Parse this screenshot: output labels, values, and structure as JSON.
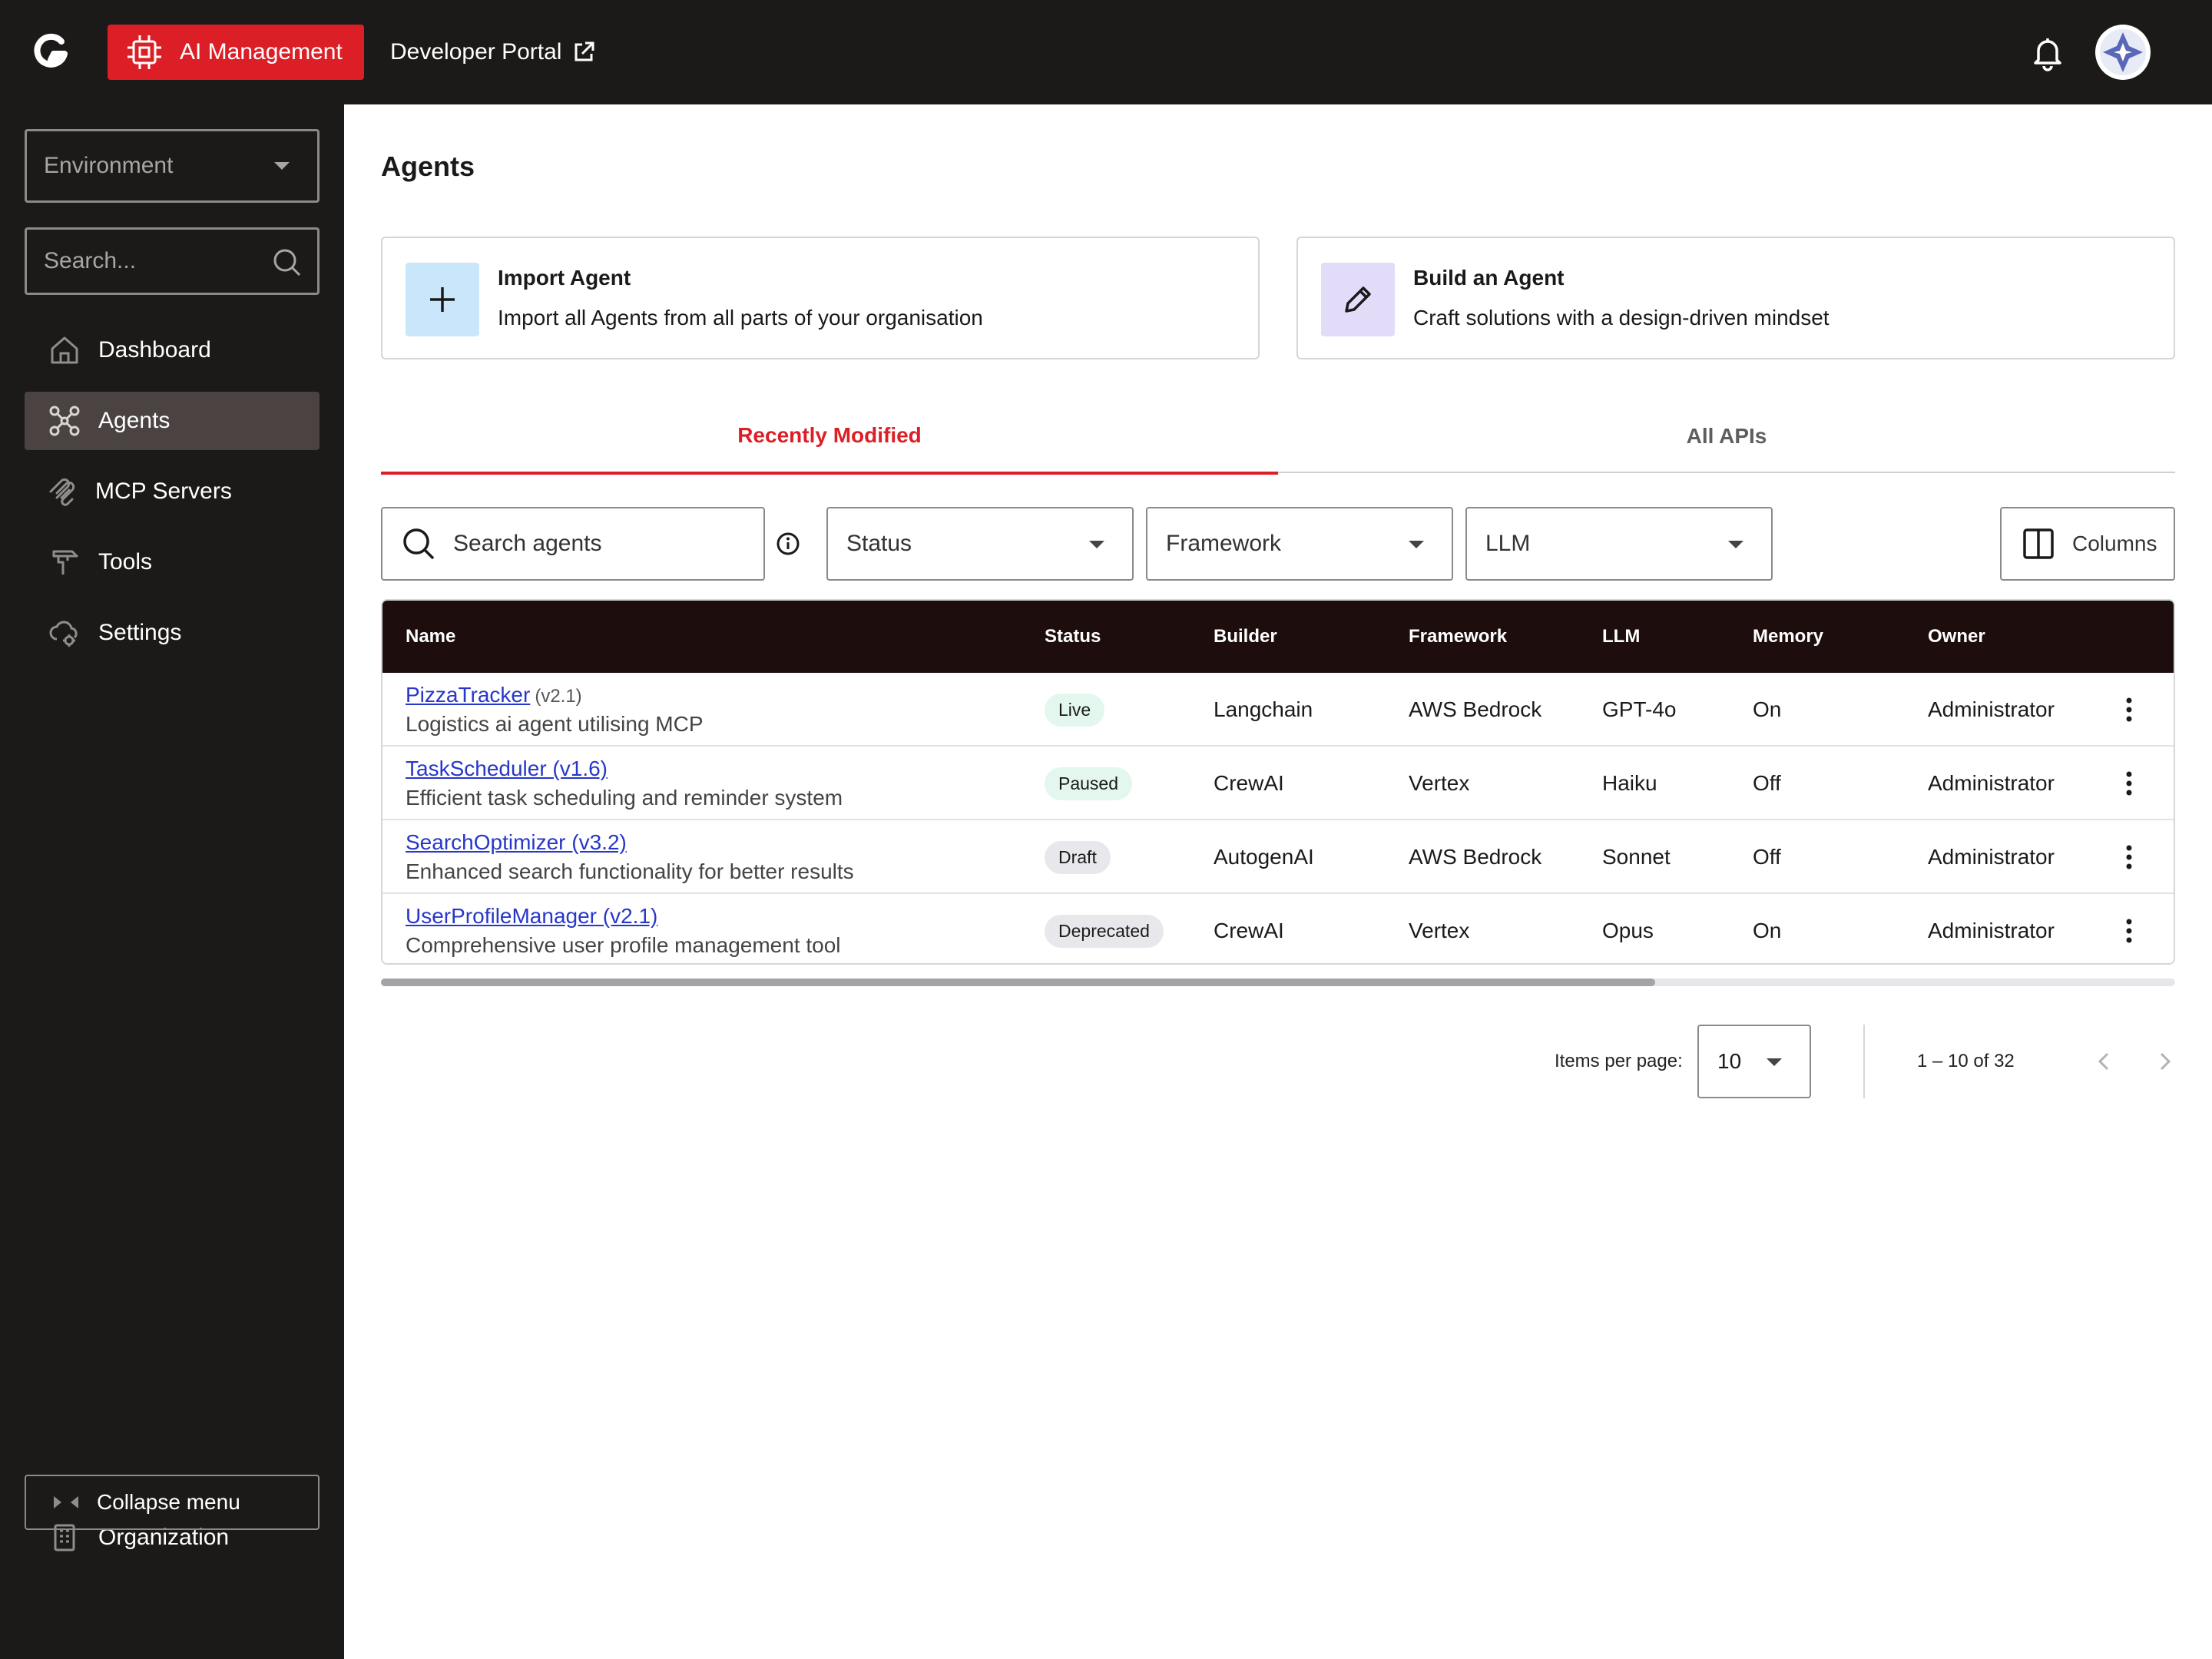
{
  "topbar": {
    "app_label": "AI Management",
    "dev_portal_label": "Developer Portal",
    "icons": [
      "brand-logo-icon",
      "chip-icon",
      "external-link-icon",
      "bell-icon",
      "avatar-icon"
    ]
  },
  "sidebar": {
    "environment_label": "Environment",
    "search_placeholder": "Search...",
    "items": [
      {
        "label": "Dashboard",
        "icon": "home-icon"
      },
      {
        "label": "Agents",
        "icon": "network-icon",
        "active": true
      },
      {
        "label": "MCP Servers",
        "icon": "mcp-icon"
      },
      {
        "label": "Tools",
        "icon": "tool-icon"
      },
      {
        "label": "Settings",
        "icon": "cloud-gear-icon"
      }
    ],
    "organization_label": "Organization",
    "collapse_label": "Collapse menu"
  },
  "main": {
    "title": "Agents",
    "cards": [
      {
        "title": "Import Agent",
        "desc": "Import all Agents from all parts of your organisation",
        "icon": "plus-icon"
      },
      {
        "title": "Build an Agent",
        "desc": "Craft solutions with a design-driven mindset",
        "icon": "pencil-icon"
      }
    ],
    "tabs": [
      {
        "label": "Recently Modified",
        "active": true
      },
      {
        "label": "All APIs"
      }
    ],
    "filters": {
      "search_placeholder": "Search agents",
      "status": "Status",
      "framework": "Framework",
      "llm": "LLM",
      "columns": "Columns"
    },
    "table": {
      "columns": [
        "Name",
        "Status",
        "Builder",
        "Framework",
        "LLM",
        "Memory",
        "Owner"
      ],
      "rows": [
        {
          "name": "PizzaTracker",
          "version": "(v2.1)",
          "desc": "Logistics ai agent utilising MCP",
          "status": "Live",
          "builder": "Langchain",
          "framework": "AWS Bedrock",
          "llm": "GPT-4o",
          "memory": "On",
          "owner": "Administrator"
        },
        {
          "name": "TaskScheduler (v1.6)",
          "version": "",
          "desc": "Efficient task scheduling and reminder system",
          "status": "Paused",
          "builder": "CrewAI",
          "framework": "Vertex",
          "llm": "Haiku",
          "memory": "Off",
          "owner": "Administrator"
        },
        {
          "name": "SearchOptimizer (v3.2)",
          "version": "",
          "desc": "Enhanced search functionality for better results",
          "status": "Draft",
          "builder": "AutogenAI",
          "framework": "AWS Bedrock",
          "llm": "Sonnet",
          "memory": "Off",
          "owner": "Administrator"
        },
        {
          "name": "UserProfileManager (v2.1)",
          "version": "",
          "desc": "Comprehensive user profile management tool",
          "status": "Deprecated",
          "builder": "CrewAI",
          "framework": "Vertex",
          "llm": "Opus",
          "memory": "On",
          "owner": "Administrator"
        }
      ],
      "status_colors": {
        "Live": "#e3f7ee",
        "Paused": "#e3f7ee",
        "Draft": "#e8e8ec",
        "Deprecated": "#e8e8ec"
      },
      "horizontal_scroll_fraction": 0.71
    },
    "pagination": {
      "items_per_page_label": "Items per page:",
      "items_per_page": "10",
      "range": "1 – 10 of 32"
    }
  },
  "colors": {
    "accent": "#dc1f26",
    "dark": "#1c1a19",
    "link": "#2737c9"
  }
}
